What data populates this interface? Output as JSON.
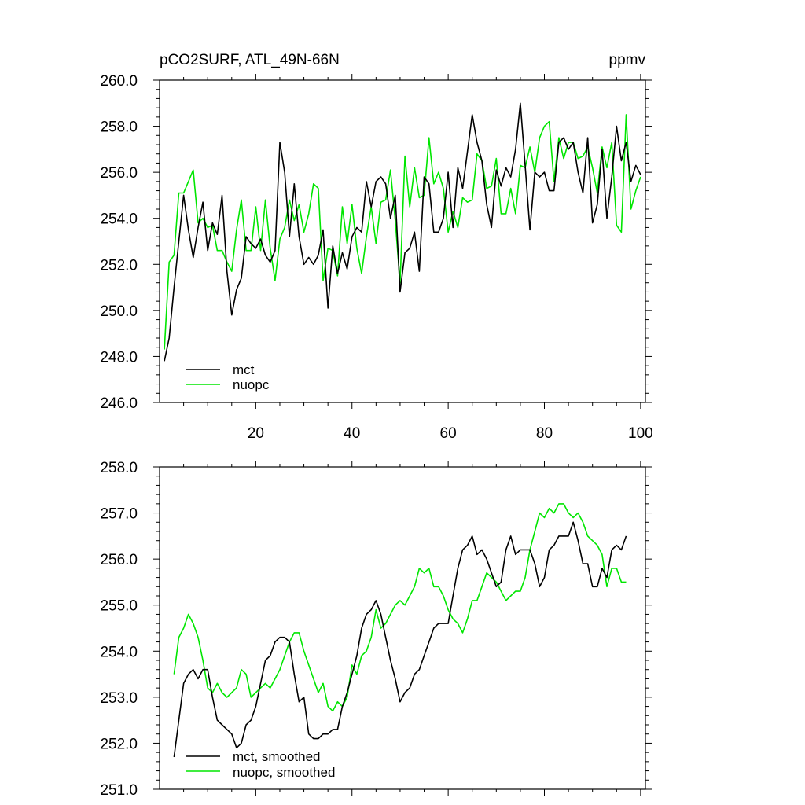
{
  "header": {
    "title": "pCO2SURF, ATL_49N-66N",
    "units": "ppmv"
  },
  "colors": {
    "mct": "#000000",
    "nuopc": "#00e600",
    "axis": "#000000"
  },
  "chart_data": [
    {
      "type": "line",
      "title": "pCO2SURF, ATL_49N-66N",
      "units": "ppmv",
      "xlim": [
        0,
        101
      ],
      "ylim": [
        246,
        260
      ],
      "xticks": [
        20,
        40,
        60,
        80,
        100
      ],
      "xtick_labels": [
        "20",
        "40",
        "60",
        "80",
        "100"
      ],
      "yticks": [
        246,
        248,
        250,
        252,
        254,
        256,
        258,
        260
      ],
      "ytick_labels": [
        "246.0",
        "248.0",
        "250.0",
        "252.0",
        "254.0",
        "256.0",
        "258.0",
        "260.0"
      ],
      "legend_position": "bottom-left",
      "x_start": 1,
      "series": [
        {
          "name": "mct",
          "color_key": "mct",
          "values": [
            247.8,
            248.8,
            251.0,
            253.0,
            255.0,
            253.5,
            252.3,
            253.6,
            254.7,
            252.6,
            253.8,
            253.3,
            255.0,
            251.7,
            249.8,
            250.9,
            251.4,
            253.2,
            252.9,
            252.7,
            253.1,
            252.4,
            252.1,
            252.6,
            257.3,
            256.0,
            253.2,
            255.5,
            253.2,
            252.0,
            252.3,
            252.0,
            252.4,
            253.5,
            250.1,
            252.8,
            251.6,
            252.5,
            251.8,
            253.2,
            253.6,
            253.4,
            255.6,
            254.5,
            255.6,
            255.8,
            255.5,
            254.0,
            255.0,
            250.8,
            252.5,
            252.7,
            253.4,
            251.7,
            255.8,
            255.5,
            253.4,
            253.4,
            254.0,
            256.0,
            253.6,
            256.2,
            255.3,
            256.9,
            258.5,
            257.3,
            256.5,
            254.6,
            253.6,
            256.1,
            255.4,
            256.2,
            255.8,
            257.0,
            259.0,
            256.3,
            253.5,
            256.0,
            255.8,
            256.0,
            255.2,
            255.2,
            257.3,
            257.5,
            257.0,
            257.3,
            256.0,
            255.1,
            257.5,
            253.8,
            254.6,
            257.0,
            254.0,
            255.8,
            258.0,
            256.5,
            257.3,
            255.6,
            256.3,
            255.9
          ]
        },
        {
          "name": "nuopc",
          "color_key": "nuopc",
          "values": [
            248.3,
            252.1,
            252.4,
            255.1,
            255.1,
            255.6,
            256.1,
            253.8,
            254.0,
            253.6,
            253.7,
            252.6,
            252.6,
            252.1,
            251.7,
            253.5,
            254.8,
            252.6,
            252.6,
            254.5,
            252.6,
            254.8,
            252.7,
            251.3,
            253.1,
            253.6,
            254.8,
            253.9,
            254.6,
            253.4,
            254.2,
            255.5,
            255.3,
            251.3,
            252.7,
            252.6,
            251.5,
            254.5,
            252.9,
            254.6,
            252.7,
            251.6,
            253.2,
            254.5,
            252.9,
            254.7,
            254.8,
            256.1,
            253.9,
            251.2,
            256.7,
            254.5,
            256.2,
            254.9,
            255.0,
            257.5,
            255.5,
            256.0,
            255.3,
            253.4,
            254.3,
            253.6,
            254.9,
            254.7,
            254.8,
            256.8,
            256.5,
            255.3,
            255.4,
            256.6,
            254.2,
            254.2,
            255.3,
            254.2,
            256.3,
            256.2,
            257.1,
            256.0,
            257.5,
            258.0,
            258.2,
            255.6,
            257.5,
            256.6,
            257.3,
            257.3,
            256.6,
            256.7,
            257.1,
            256.2,
            255.1,
            257.1,
            256.2,
            257.3,
            253.7,
            253.4,
            258.5,
            254.4,
            255.2,
            255.8
          ]
        }
      ],
      "legend": [
        {
          "label": "mct",
          "color_key": "mct"
        },
        {
          "label": "nuopc",
          "color_key": "nuopc"
        }
      ]
    },
    {
      "type": "line",
      "title": "",
      "xlim": [
        0,
        101
      ],
      "ylim": [
        251,
        258
      ],
      "xticks": [
        20,
        40,
        60,
        80,
        100
      ],
      "xtick_labels": [],
      "yticks": [
        251,
        252,
        253,
        254,
        255,
        256,
        257,
        258
      ],
      "ytick_labels": [
        "251.0",
        "252.0",
        "253.0",
        "254.0",
        "255.0",
        "256.0",
        "257.0",
        "258.0"
      ],
      "legend_position": "bottom-left",
      "x_start": 3,
      "series": [
        {
          "name": "mct, smoothed",
          "color_key": "mct",
          "values": [
            251.7,
            252.5,
            253.3,
            253.5,
            253.6,
            253.4,
            253.6,
            253.6,
            253.0,
            252.5,
            252.4,
            252.3,
            252.2,
            251.9,
            252.0,
            252.4,
            252.5,
            252.8,
            253.3,
            253.8,
            253.9,
            254.2,
            254.3,
            254.3,
            254.2,
            253.5,
            252.9,
            253.0,
            252.2,
            252.1,
            252.1,
            252.2,
            252.2,
            252.3,
            252.3,
            252.8,
            253.1,
            253.5,
            253.9,
            254.5,
            254.8,
            254.9,
            255.1,
            254.8,
            254.3,
            253.8,
            253.4,
            252.9,
            253.1,
            253.2,
            253.5,
            253.6,
            253.9,
            254.2,
            254.5,
            254.6,
            254.6,
            254.6,
            255.2,
            255.8,
            256.2,
            256.3,
            256.5,
            256.1,
            256.2,
            256.0,
            255.7,
            255.4,
            255.5,
            256.2,
            256.5,
            256.1,
            256.2,
            256.2,
            256.2,
            255.9,
            255.4,
            255.6,
            256.2,
            256.3,
            256.5,
            256.5,
            256.5,
            256.8,
            256.4,
            255.9,
            255.9,
            255.4,
            255.4,
            255.8,
            255.6,
            256.2,
            256.3,
            256.2,
            256.5
          ]
        },
        {
          "name": "nuopc, smoothed",
          "color_key": "nuopc",
          "values": [
            253.5,
            254.3,
            254.5,
            254.8,
            254.6,
            254.3,
            253.8,
            253.2,
            253.1,
            253.3,
            253.1,
            253.0,
            253.1,
            253.2,
            253.6,
            253.5,
            253.0,
            253.1,
            253.2,
            253.3,
            253.2,
            253.4,
            253.6,
            253.9,
            254.2,
            254.4,
            254.4,
            254.0,
            253.7,
            253.4,
            253.1,
            253.3,
            252.8,
            252.7,
            252.9,
            252.8,
            253.0,
            253.7,
            253.5,
            253.9,
            254.0,
            254.3,
            254.9,
            254.5,
            254.6,
            254.8,
            255.0,
            255.1,
            255.0,
            255.2,
            255.4,
            255.8,
            255.7,
            255.8,
            255.4,
            255.4,
            255.2,
            254.9,
            254.7,
            254.6,
            254.4,
            254.7,
            255.1,
            255.1,
            255.4,
            255.7,
            255.6,
            255.5,
            255.3,
            255.1,
            255.2,
            255.3,
            255.3,
            255.6,
            256.2,
            256.6,
            257.0,
            256.9,
            257.1,
            257.0,
            257.2,
            257.2,
            257.0,
            256.9,
            257.0,
            256.8,
            256.5,
            256.4,
            256.3,
            256.1,
            255.4,
            255.8,
            255.8,
            255.5,
            255.5
          ]
        }
      ],
      "legend": [
        {
          "label": "mct, smoothed",
          "color_key": "mct"
        },
        {
          "label": "nuopc, smoothed",
          "color_key": "nuopc"
        }
      ]
    }
  ]
}
